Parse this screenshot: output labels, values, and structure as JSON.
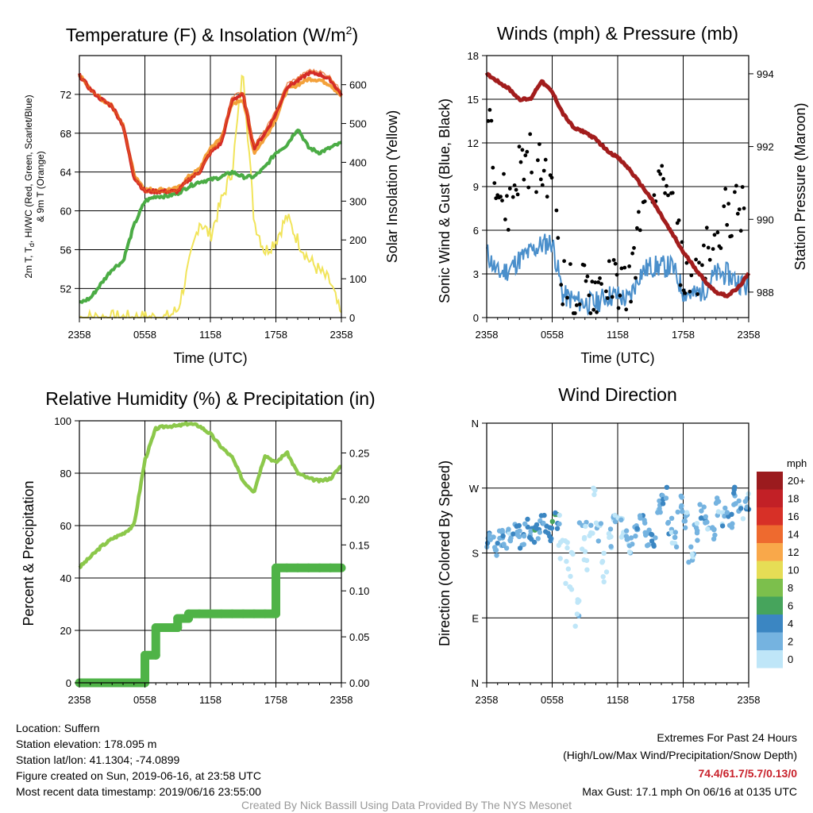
{
  "panels": {
    "temperature": {
      "title": "Temperature (F) & Insolation (W/m",
      "title_sup": "2",
      "title_close": ")",
      "ylabel_line1": "2m T, T",
      "ylabel_sub": "d",
      "ylabel_line1b": ", HI/WC (Red, Green, Scarlet/Blue)",
      "ylabel_line2": "& 9m T (Orange)",
      "ylabel_right": "Solar Insolation (Yellow)",
      "xlabel": "Time (UTC)",
      "xticks": [
        "2358",
        "0558",
        "1158",
        "1758",
        "2358"
      ],
      "yticks_left": [
        "52",
        "56",
        "60",
        "64",
        "68",
        "72"
      ],
      "yticks_right": [
        "0",
        "100",
        "200",
        "300",
        "400",
        "500",
        "600"
      ]
    },
    "winds": {
      "title": "Winds (mph) & Pressure (mb)",
      "ylabel_left": "Sonic Wind & Gust (Blue, Black)",
      "ylabel_right": "Station Pressure (Maroon)",
      "xlabel": "Time (UTC)",
      "xticks": [
        "2358",
        "0558",
        "1158",
        "1758",
        "2358"
      ],
      "yticks_left": [
        "0",
        "3",
        "6",
        "9",
        "12",
        "15",
        "18"
      ],
      "yticks_right": [
        "988",
        "990",
        "992",
        "994"
      ]
    },
    "humidity": {
      "title": "Relative Humidity (%) & Precipitation (in)",
      "ylabel_left": "Percent & Precipitation",
      "xticks": [
        "2358",
        "0558",
        "1158",
        "1758",
        "2358"
      ],
      "yticks_left": [
        "0",
        "20",
        "40",
        "60",
        "80",
        "100"
      ],
      "yticks_right": [
        "0.00",
        "0.05",
        "0.10",
        "0.15",
        "0.20",
        "0.25"
      ]
    },
    "direction": {
      "title": "Wind Direction",
      "ylabel_left": "Direction (Colored By Speed)",
      "xticks": [
        "2358",
        "0558",
        "1158",
        "1758",
        "2358"
      ],
      "yticks_left": [
        "N",
        "E",
        "S",
        "W",
        "N"
      ],
      "legend_title": "mph",
      "legend_labels": [
        "20+",
        "18",
        "16",
        "14",
        "12",
        "10",
        "8",
        "6",
        "4",
        "2",
        "0"
      ],
      "legend_colors": [
        "#9b1b1e",
        "#c22026",
        "#d73027",
        "#ee6a2f",
        "#f9a84a",
        "#e6dd55",
        "#7cbf4c",
        "#46a45c",
        "#3b86c2",
        "#75b3e0",
        "#bfe6f8"
      ]
    }
  },
  "footer": {
    "location": "Location: Suffern",
    "elevation": "Station elevation: 178.095 m",
    "latlon": "Station lat/lon: 41.1304; -74.0899",
    "created": "Figure created on Sun, 2019-06-16, at 23:58 UTC",
    "recent": "Most recent data timestamp: 2019/06/16 23:55:00",
    "extremes_title": "Extremes For Past 24 Hours",
    "extremes_desc": "(High/Low/Max Wind/Precipitation/Snow Depth)",
    "extremes_values": "74.4/61.7/5.7/0.13/0",
    "max_gust": "Max Gust: 17.1 mph On 06/16 at 0135 UTC",
    "credit": "Created By Nick Bassill Using Data Provided By The NYS Mesonet"
  },
  "colors": {
    "temp": "#d42a26",
    "dewpoint": "#4bac45",
    "heat_index": "#e8671f",
    "temp_9m": "#f3a13b",
    "insolation": "#f1e45a",
    "wind": "#4a8fcb",
    "gust": "#000000",
    "pressure": "#a21d1d",
    "humidity": "#8cc84b",
    "precip": "#4fb347",
    "extremes": "#c8202a"
  },
  "chart_data": [
    {
      "type": "line",
      "title": "Temperature (F) & Insolation (W/m2)",
      "xlabel": "Time (UTC)",
      "ylabel": "2m T, Td, HI/WC (Red, Green, Scarlet/Blue) & 9m T (Orange)",
      "ylabel_right": "Solar Insolation (Yellow)",
      "x_hours": [
        0,
        1,
        2,
        3,
        4,
        5,
        6,
        7,
        8,
        9,
        10,
        11,
        12,
        13,
        14,
        15,
        16,
        17,
        18,
        19,
        20,
        21,
        22,
        23,
        24
      ],
      "xlim": [
        0,
        24
      ],
      "ylim": [
        49,
        76
      ],
      "ylim_right": [
        0,
        675
      ],
      "series": [
        {
          "name": "2m T",
          "axis": "left",
          "values": [
            74,
            72.5,
            71.5,
            70.8,
            68.8,
            63.5,
            62,
            62,
            62,
            62,
            63.2,
            64,
            66,
            67,
            71.5,
            72,
            66.5,
            68,
            70,
            72.8,
            73.4,
            74.2,
            74.1,
            73.5,
            72
          ]
        },
        {
          "name": "9m T",
          "axis": "left",
          "values": [
            74,
            72.5,
            71.5,
            70.8,
            68.8,
            63.8,
            62.2,
            62.2,
            62.2,
            62.3,
            63.5,
            64.3,
            66.5,
            67.5,
            71,
            71.5,
            66,
            67.5,
            69.5,
            72.5,
            73,
            73.6,
            73.5,
            73,
            71.8
          ]
        },
        {
          "name": "Td",
          "axis": "left",
          "values": [
            50.5,
            51,
            52.5,
            54,
            54.8,
            58.5,
            61,
            61.5,
            61.5,
            61.8,
            62.5,
            63,
            63.2,
            63.5,
            64,
            63.5,
            63.5,
            64.5,
            66,
            66.8,
            68.5,
            66.5,
            66,
            66.5,
            67
          ]
        },
        {
          "name": "Insolation",
          "axis": "right",
          "values": [
            0,
            0,
            0,
            0,
            0,
            0,
            0,
            0,
            0,
            20,
            130,
            250,
            210,
            300,
            380,
            640,
            250,
            170,
            200,
            260,
            200,
            150,
            120,
            90,
            0
          ]
        }
      ]
    },
    {
      "type": "line",
      "title": "Winds (mph) & Pressure (mb)",
      "xlabel": "Time (UTC)",
      "ylabel": "Sonic Wind & Gust (Blue, Black)",
      "ylabel_right": "Station Pressure (Maroon)",
      "x_hours": [
        0,
        1,
        2,
        3,
        4,
        5,
        6,
        7,
        8,
        9,
        10,
        11,
        12,
        13,
        14,
        15,
        16,
        17,
        18,
        19,
        20,
        21,
        22,
        23,
        24
      ],
      "xlim": [
        0,
        24
      ],
      "ylim": [
        0,
        18
      ],
      "ylim_right": [
        987.3,
        994.5
      ],
      "series": [
        {
          "name": "Sonic Wind",
          "axis": "left",
          "values": [
            4.5,
            3,
            3.3,
            4,
            4.5,
            5,
            5.2,
            1.5,
            1.2,
            1,
            1,
            1.5,
            1.5,
            1.2,
            3,
            3.5,
            3.5,
            3.5,
            1.8,
            1.5,
            2,
            3,
            3,
            2.5,
            2
          ]
        },
        {
          "name": "Gust",
          "axis": "left",
          "values": [
            16.5,
            9,
            7.5,
            10.5,
            11,
            10,
            10.5,
            2.5,
            1.5,
            2,
            2,
            2.5,
            2.5,
            2,
            6,
            8,
            8.5,
            7.5,
            3,
            3,
            4,
            6.5,
            7,
            7.5,
            6.5
          ]
        },
        {
          "name": "Station Pressure",
          "axis": "right",
          "values": [
            994,
            993.8,
            993.6,
            993.3,
            993.3,
            993.8,
            993.5,
            992.9,
            992.5,
            992.4,
            992.2,
            991.9,
            991.7,
            991.4,
            991.0,
            990.6,
            990.1,
            989.6,
            989.1,
            988.7,
            988.3,
            988.0,
            987.9,
            988.1,
            988.5
          ]
        }
      ]
    },
    {
      "type": "line",
      "title": "Relative Humidity (%) & Precipitation (in)",
      "ylabel": "Percent & Precipitation",
      "x_hours": [
        0,
        1,
        2,
        3,
        4,
        5,
        6,
        7,
        8,
        9,
        10,
        11,
        12,
        13,
        14,
        15,
        16,
        17,
        18,
        19,
        20,
        21,
        22,
        23,
        24
      ],
      "xlim": [
        0,
        24
      ],
      "ylim": [
        0,
        100
      ],
      "ylim_right": [
        0,
        0.285
      ],
      "series": [
        {
          "name": "Relative Humidity",
          "axis": "left",
          "values": [
            44,
            48,
            52,
            55,
            57,
            60,
            85,
            97,
            98,
            98,
            99,
            98,
            95,
            90,
            86,
            77,
            73,
            87,
            84,
            88,
            80,
            78,
            77,
            78,
            83
          ]
        },
        {
          "name": "Precipitation",
          "axis": "right",
          "values": [
            0,
            0,
            0,
            0,
            0,
            0,
            0.03,
            0.06,
            0.06,
            0.07,
            0.075,
            0.075,
            0.075,
            0.075,
            0.075,
            0.075,
            0.075,
            0.075,
            0.125,
            0.125,
            0.125,
            0.125,
            0.125,
            0.125,
            0.125
          ]
        }
      ]
    },
    {
      "type": "scatter",
      "title": "Wind Direction",
      "ylabel": "Direction (Colored By Speed)",
      "x_hours": [
        0,
        0.5,
        1,
        1.5,
        2,
        2.5,
        3,
        3.5,
        4,
        4.5,
        5,
        5.5,
        6,
        6.5,
        7,
        7.5,
        8,
        8.5,
        9,
        9.5,
        10,
        10.5,
        11,
        11.5,
        12,
        12.5,
        13,
        13.5,
        14,
        14.5,
        15,
        15.5,
        16,
        16.5,
        17,
        17.5,
        18,
        18.5,
        19,
        19.5,
        20,
        20.5,
        21,
        21.5,
        22,
        22.5,
        23,
        23.5
      ],
      "xlim": [
        0,
        24
      ],
      "ylim_labels": [
        "N",
        "E",
        "S",
        "W",
        "N"
      ],
      "y_degrees": [
        195,
        190,
        200,
        198,
        205,
        210,
        200,
        215,
        205,
        212,
        220,
        210,
        225,
        200,
        170,
        150,
        110,
        200,
        190,
        240,
        210,
        150,
        200,
        230,
        215,
        205,
        190,
        210,
        220,
        200,
        195,
        240,
        260,
        215,
        200,
        250,
        225,
        180,
        210,
        235,
        220,
        205,
        245,
        230,
        225,
        260,
        240,
        250
      ],
      "speeds": [
        4,
        4,
        3,
        4,
        3,
        4,
        4,
        4,
        5,
        4,
        4,
        5,
        6,
        1,
        0,
        0,
        1,
        1,
        1,
        1,
        2,
        1,
        2,
        2,
        2,
        3,
        3,
        3,
        3,
        3,
        4,
        3,
        4,
        3,
        2,
        3,
        3,
        3,
        2,
        3,
        3,
        3,
        3,
        3,
        4,
        4,
        3,
        3
      ]
    }
  ]
}
